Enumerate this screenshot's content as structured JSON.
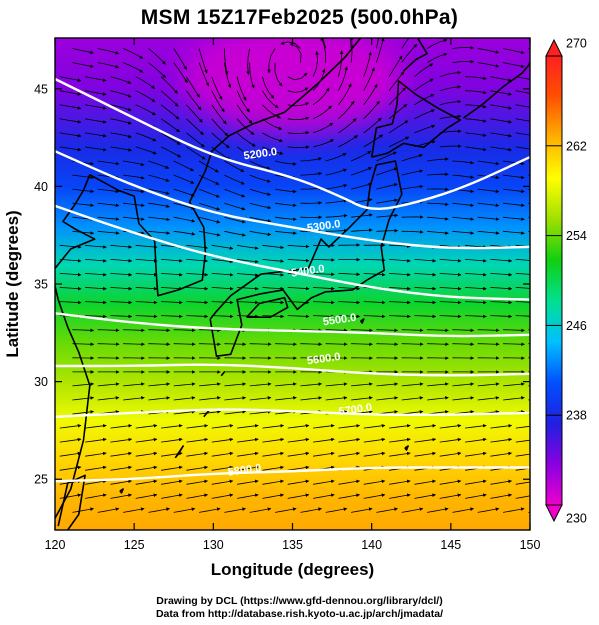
{
  "title": "MSM 15Z17Feb2025 (500.0hPa)",
  "credits": {
    "line1": "Drawing by DCL (https://www.gfd-dennou.org/library/dcl/)",
    "line2": "Data from http://database.rish.kyoto-u.ac.jp/arch/jmadata/"
  },
  "chart_data": {
    "type": "heatmap",
    "title": "MSM 15Z17Feb2025 (500.0hPa)",
    "xlabel": "Longitude (degrees)",
    "ylabel": "Latitude  (degrees)",
    "xlim": [
      120,
      150
    ],
    "ylim": [
      22.4,
      47.6
    ],
    "xticks": [
      120,
      125,
      130,
      135,
      140,
      145,
      150
    ],
    "yticks": [
      25,
      30,
      35,
      40,
      45
    ],
    "colorbar": {
      "min": 230,
      "max": 270,
      "ticks": [
        230,
        238,
        246,
        254,
        262,
        270
      ],
      "colors": [
        "#ee00cc",
        "#8a00e0",
        "#2020e0",
        "#0050ff",
        "#00c0ff",
        "#00e090",
        "#10d010",
        "#a0e000",
        "#ffff00",
        "#ffb000",
        "#ff5000",
        "#ff2020"
      ]
    },
    "temperature_field": [
      {
        "lat": 47.6,
        "temp": 233
      },
      {
        "lat": 45,
        "temp": 234
      },
      {
        "lat": 42,
        "temp": 238
      },
      {
        "lat": 40,
        "temp": 240
      },
      {
        "lat": 38,
        "temp": 243
      },
      {
        "lat": 36,
        "temp": 247
      },
      {
        "lat": 34,
        "temp": 251
      },
      {
        "lat": 32,
        "temp": 254
      },
      {
        "lat": 30,
        "temp": 256
      },
      {
        "lat": 28,
        "temp": 258.5
      },
      {
        "lat": 26,
        "temp": 261
      },
      {
        "lat": 24,
        "temp": 262.5
      },
      {
        "lat": 22.4,
        "temp": 263
      }
    ],
    "cold_core": {
      "lon": 135,
      "lat": 45.5,
      "temp": 231
    },
    "contours": [
      {
        "label": "5200.0",
        "label_lon": 133,
        "label_lat": 41.5,
        "points": [
          [
            120,
            45.5
          ],
          [
            125,
            43.5
          ],
          [
            130,
            41.5
          ],
          [
            135,
            40.5
          ],
          [
            138,
            39.5
          ],
          [
            140,
            38.7
          ],
          [
            143,
            39.2
          ],
          [
            146,
            40.0
          ],
          [
            150,
            41.5
          ]
        ]
      },
      {
        "label": "5300.0",
        "label_lon": 137,
        "label_lat": 37.8,
        "points": [
          [
            120,
            41.8
          ],
          [
            125,
            40.0
          ],
          [
            130,
            38.6
          ],
          [
            135,
            37.9
          ],
          [
            140,
            37.2
          ],
          [
            145,
            36.8
          ],
          [
            150,
            36.9
          ]
        ]
      },
      {
        "label": "5400.0",
        "label_lon": 136,
        "label_lat": 35.5,
        "points": [
          [
            120,
            39.0
          ],
          [
            125,
            37.6
          ],
          [
            130,
            36.4
          ],
          [
            135,
            35.6
          ],
          [
            140,
            34.8
          ],
          [
            145,
            34.3
          ],
          [
            150,
            34.2
          ]
        ]
      },
      {
        "label": "5500.0",
        "label_lon": 138,
        "label_lat": 33.0,
        "points": [
          [
            120,
            33.5
          ],
          [
            125,
            33.0
          ],
          [
            130,
            32.7
          ],
          [
            135,
            32.6
          ],
          [
            140,
            32.5
          ],
          [
            145,
            32.3
          ],
          [
            150,
            32.4
          ]
        ]
      },
      {
        "label": "5600.0",
        "label_lon": 137,
        "label_lat": 31.0,
        "points": [
          [
            120,
            30.8
          ],
          [
            125,
            30.8
          ],
          [
            130,
            30.9
          ],
          [
            135,
            30.7
          ],
          [
            140,
            30.4
          ],
          [
            145,
            30.3
          ],
          [
            150,
            30.4
          ]
        ]
      },
      {
        "label": "5700.0",
        "label_lon": 139,
        "label_lat": 28.4,
        "points": [
          [
            120,
            28.2
          ],
          [
            125,
            28.4
          ],
          [
            130,
            28.6
          ],
          [
            135,
            28.5
          ],
          [
            140,
            28.3
          ],
          [
            145,
            28.3
          ],
          [
            150,
            28.4
          ]
        ]
      },
      {
        "label": "5800.0",
        "label_lon": 132,
        "label_lat": 25.3,
        "points": [
          [
            120,
            24.9
          ],
          [
            125,
            25.0
          ],
          [
            130,
            25.3
          ],
          [
            135,
            25.4
          ],
          [
            140,
            25.6
          ],
          [
            145,
            25.6
          ],
          [
            150,
            25.6
          ]
        ]
      }
    ]
  }
}
